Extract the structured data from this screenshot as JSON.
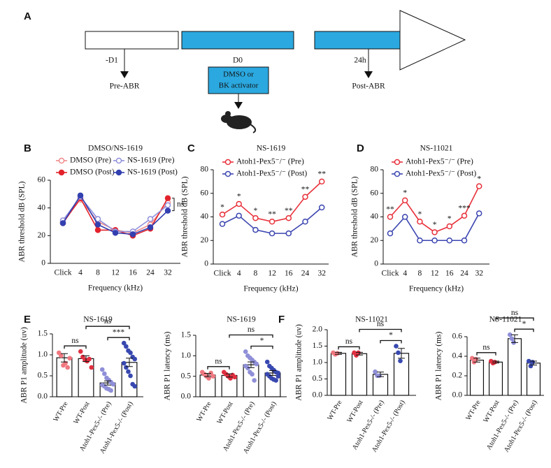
{
  "panel_a": {
    "label": "A",
    "steps": [
      "-D1",
      "D0",
      "24h"
    ],
    "arrows": [
      "Pre-ABR",
      "Post-ABR"
    ],
    "box": [
      "DMSO or",
      "BK activator"
    ]
  },
  "chart_data": [
    {
      "type": "line",
      "label": "B",
      "title": "DMSO/NS-1619",
      "x_label": "Frequency (kHz)",
      "y_label": "ABR threshold dB (SPL)",
      "categories": [
        "Click",
        "4",
        "8",
        "12",
        "16",
        "24",
        "32"
      ],
      "ylim": [
        0,
        60
      ],
      "yticks": [
        0,
        20,
        40,
        60
      ],
      "series": [
        {
          "name": "DMSO (Pre)",
          "color": "#f08a8a",
          "filled": false,
          "values": [
            30,
            46,
            30,
            24,
            22,
            28,
            44
          ]
        },
        {
          "name": "DMSO (Post)",
          "color": "#e3232c",
          "filled": true,
          "values": [
            29,
            47,
            24,
            24,
            20,
            25,
            47
          ]
        },
        {
          "name": "NS-1619 (Pre)",
          "color": "#9090dc",
          "filled": false,
          "values": [
            31,
            48,
            32,
            23,
            23,
            32,
            42
          ]
        },
        {
          "name": "NS-1619 (Post)",
          "color": "#3340b0",
          "filled": true,
          "values": [
            29,
            49,
            28,
            22,
            21,
            26,
            38
          ]
        }
      ],
      "annotation": "ns"
    },
    {
      "type": "line",
      "label": "C",
      "title": "NS-1619",
      "x_label": "Frequency (kHz)",
      "y_label": "ABR threshold dB (SPL)",
      "categories": [
        "Click",
        "4",
        "8",
        "12",
        "16",
        "24",
        "32"
      ],
      "ylim": [
        0,
        80
      ],
      "yticks": [
        0,
        20,
        40,
        60,
        80
      ],
      "series": [
        {
          "name": "Atoh1-Pex5⁻/⁻ (Pre)",
          "color": "#e8303a",
          "filled": false,
          "values": [
            42,
            51,
            39,
            36,
            39,
            57,
            70
          ]
        },
        {
          "name": "Atoh1-Pex5⁻/⁻ (Post)",
          "color": "#3b45b0",
          "filled": false,
          "values": [
            34,
            41,
            29,
            26,
            26,
            36,
            48
          ]
        }
      ],
      "annotations": [
        "*",
        "*",
        "*",
        "**",
        "**",
        "**",
        "**"
      ]
    },
    {
      "type": "line",
      "label": "D",
      "title": "NS-11021",
      "x_label": "Frequency (kHz)",
      "y_label": "ABR threshold dB (SPL)",
      "categories": [
        "Click",
        "4",
        "8",
        "12",
        "16",
        "24",
        "32"
      ],
      "ylim": [
        0,
        80
      ],
      "yticks": [
        0,
        20,
        40,
        60,
        80
      ],
      "series": [
        {
          "name": "Atoh1-Pex5⁻/⁻ (Pre)",
          "color": "#e8303a",
          "filled": false,
          "values": [
            40,
            54,
            36,
            27,
            32,
            41,
            66
          ]
        },
        {
          "name": "Atoh1-Pex5⁻/⁻ (Post)",
          "color": "#3b45b0",
          "filled": false,
          "values": [
            26,
            40,
            20,
            20,
            20,
            20,
            43
          ]
        }
      ],
      "annotations": [
        "**",
        "*",
        "*",
        "*",
        "*",
        "***",
        "*"
      ]
    },
    {
      "type": "bar",
      "label": "E",
      "title": "NS-1619",
      "y_label": "ABR P1 amplitude (uv)",
      "categories": [
        "WT-Pre",
        "WT-Post",
        "Atoh1-Pex5-/- (Pre)",
        "Atoh1-Pex5-/- (Post)"
      ],
      "values": [
        0.93,
        0.91,
        0.33,
        0.82
      ],
      "errors": [
        0.1,
        0.07,
        0.05,
        0.1
      ],
      "colors": [
        "#f07880",
        "#e03040",
        "#8f8fd8",
        "#3848b0"
      ],
      "points": [
        [
          1.05,
          0.98,
          0.75,
          0.8,
          0.7,
          0.92
        ],
        [
          1.08,
          0.95,
          0.88,
          0.85,
          0.9,
          0.7
        ],
        [
          0.65,
          0.55,
          0.45,
          0.4,
          0.35,
          0.3,
          0.28,
          0.25,
          0.2,
          0.18,
          0.15,
          0.3
        ],
        [
          1.28,
          1.2,
          1.1,
          1.05,
          0.95,
          0.9,
          0.8,
          0.7,
          0.6,
          0.5,
          0.3,
          0.25
        ]
      ],
      "ylim": [
        0,
        1.5
      ],
      "yticks": [
        {
          "value": 0,
          "label": "0.0"
        },
        0.5,
        {
          "value": 1,
          "label": "1.0"
        },
        1.5
      ],
      "brackets": [
        {
          "between": [
            "WT-Pre",
            "WT-Post"
          ],
          "label": "ns"
        },
        {
          "between": [
            "Atoh1-Pex5-/- (Pre)",
            "Atoh1-Pex5-/- (Post)"
          ],
          "label": "***"
        },
        {
          "between": [
            "WT-Post",
            "Atoh1-Pex5-/- (Post)"
          ],
          "label": "ns"
        }
      ]
    },
    {
      "type": "bar",
      "title": "NS-1619",
      "y_label": "ABR P1 latency (ms)",
      "categories": [
        "WT-Pre",
        "WT-Post",
        "Atoh1-Pex5-/- (Pre)",
        "Atoh1-Pex5-/- (Post)"
      ],
      "values": [
        0.53,
        0.52,
        0.78,
        0.58
      ],
      "errors": [
        0.04,
        0.04,
        0.07,
        0.06
      ],
      "colors": [
        "#f07880",
        "#e03040",
        "#8f8fd8",
        "#3848b0"
      ],
      "points": [
        [
          0.6,
          0.55,
          0.5,
          0.45,
          0.58,
          0.5
        ],
        [
          0.6,
          0.55,
          0.5,
          0.45,
          0.53,
          0.48
        ],
        [
          1.1,
          1.0,
          0.95,
          0.9,
          0.85,
          0.8,
          0.75,
          0.7,
          0.6,
          0.55,
          0.4,
          0.8
        ],
        [
          0.85,
          0.75,
          0.7,
          0.65,
          0.6,
          0.58,
          0.55,
          0.5,
          0.45,
          0.42,
          0.4,
          0.5
        ]
      ],
      "ylim": [
        0,
        1.5
      ],
      "yticks": [
        {
          "value": 0,
          "label": "0.0"
        },
        0.5,
        {
          "value": 1,
          "label": "1.0"
        },
        1.5
      ],
      "brackets": [
        {
          "between": [
            "WT-Pre",
            "WT-Post"
          ],
          "label": "ns"
        },
        {
          "between": [
            "Atoh1-Pex5-/- (Pre)",
            "Atoh1-Pex5-/- (Post)"
          ],
          "label": "*"
        },
        {
          "between": [
            "WT-Post",
            "Atoh1-Pex5-/- (Post)"
          ],
          "label": "ns"
        }
      ]
    },
    {
      "type": "bar",
      "label": "F",
      "title": "NS-11021",
      "y_label": "ABR P1 amplitude (uv)",
      "categories": [
        "WT-Pre",
        "WT-Post",
        "Atoh1-Pex5-/- (Pre)",
        "Atoh1-Pex5-/- (Post)"
      ],
      "values": [
        1.28,
        1.27,
        0.64,
        1.28
      ],
      "errors": [
        0.03,
        0.04,
        0.07,
        0.15
      ],
      "colors": [
        "#f07880",
        "#e03040",
        "#8f8fd8",
        "#3848b0"
      ],
      "points": [
        [
          1.3,
          1.25,
          1.28
        ],
        [
          1.3,
          1.22,
          1.3
        ],
        [
          0.72,
          0.6,
          0.6
        ],
        [
          1.5,
          1.3,
          1.05
        ]
      ],
      "ylim": [
        0,
        2
      ],
      "yticks": [
        {
          "value": 0,
          "label": "0.0"
        },
        0.5,
        {
          "value": 1,
          "label": "1.0"
        },
        1.5,
        {
          "value": 2,
          "label": "2.0"
        }
      ],
      "brackets": [
        {
          "between": [
            "WT-Pre",
            "WT-Post"
          ],
          "label": "ns"
        },
        {
          "between": [
            "Atoh1-Pex5-/- (Pre)",
            "Atoh1-Pex5-/- (Post)"
          ],
          "label": "*"
        },
        {
          "between": [
            "WT-Post",
            "Atoh1-Pex5-/- (Post)"
          ],
          "label": "ns"
        }
      ]
    },
    {
      "type": "bar",
      "title": "NS-11021",
      "y_label": "ABR P1 latency (ms)",
      "categories": [
        "WT-Pre",
        "WT-Post",
        "Atoh1-Pex5-/- (Pre)",
        "Atoh1-Pex5-/- (Post)"
      ],
      "values": [
        0.36,
        0.34,
        0.58,
        0.33
      ],
      "errors": [
        0.02,
        0.01,
        0.04,
        0.02
      ],
      "colors": [
        "#f07880",
        "#e03040",
        "#8f8fd8",
        "#3848b0"
      ],
      "points": [
        [
          0.38,
          0.34,
          0.37
        ],
        [
          0.35,
          0.33,
          0.34
        ],
        [
          0.62,
          0.58,
          0.54
        ],
        [
          0.35,
          0.3,
          0.34
        ]
      ],
      "ylim": [
        0,
        0.6
      ],
      "yticks": [
        {
          "value": 0,
          "label": "0.0"
        },
        0.2,
        0.4,
        0.6
      ],
      "brackets": [
        {
          "between": [
            "WT-Pre",
            "WT-Post"
          ],
          "label": "ns"
        },
        {
          "between": [
            "Atoh1-Pex5-/- (Pre)",
            "Atoh1-Pex5-/- (Post)"
          ],
          "label": "*"
        },
        {
          "between": [
            "WT-Post",
            "Atoh1-Pex5-/- (Post)"
          ],
          "label": "ns"
        }
      ]
    }
  ]
}
